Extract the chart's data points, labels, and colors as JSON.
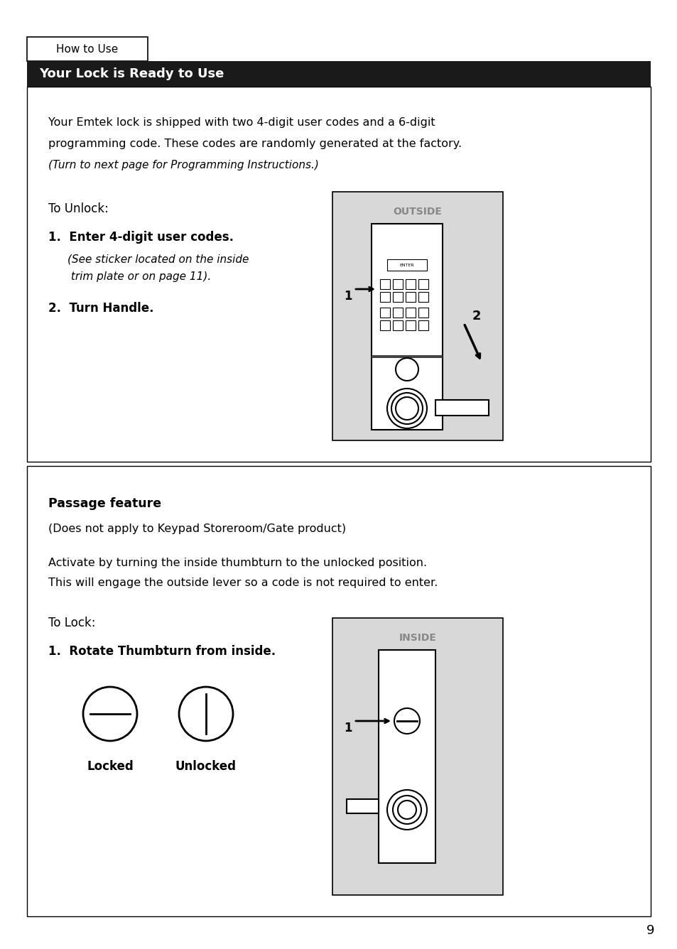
{
  "page_bg": "#ffffff",
  "outer_border_color": "#000000",
  "header_tab_text": "How to Use",
  "header_bar_text": "Your Lock is Ready to Use",
  "header_bar_bg": "#1a1a1a",
  "header_bar_fg": "#ffffff",
  "section1_text_lines": [
    "Your Emtek lock is shipped with two 4-digit user codes and a 6-digit",
    "programming code. These codes are randomly generated at the factory.",
    "(Turn to next page for Programming Instructions.)"
  ],
  "unlock_heading": "To Unlock:",
  "unlock_steps": [
    "1.  Enter 4-digit user codes.",
    "    (See sticker located on the inside",
    "     trim plate or on page 11).",
    "",
    "2.  Turn Handle."
  ],
  "outside_label": "OUTSIDE",
  "passage_heading": "Passage feature",
  "passage_lines": [
    "(Does not apply to Keypad Storeroom/Gate product)",
    "",
    "Activate by turning the inside thumbturn to the unlocked position.",
    "This will engage the outside lever so a code is not required to enter."
  ],
  "lock_heading": "To Lock:",
  "lock_steps": [
    "1.  Rotate Thumbturn from inside."
  ],
  "inside_label": "INSIDE",
  "locked_label": "Locked",
  "unlocked_label": "Unlocked",
  "page_number": "9",
  "gray_bg": "#d8d8d8",
  "light_gray": "#e8e8e8"
}
